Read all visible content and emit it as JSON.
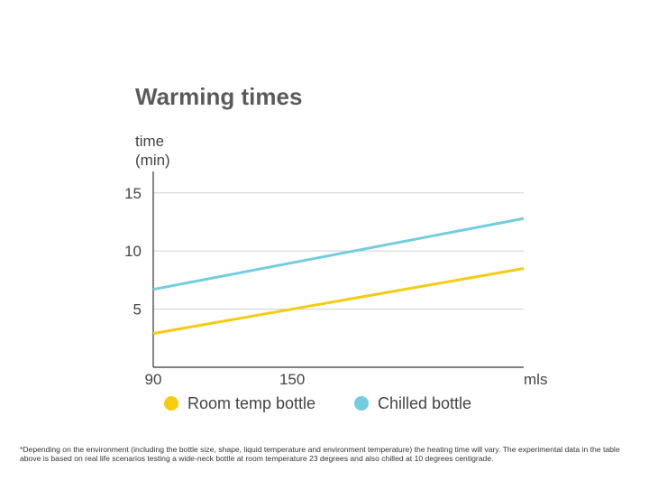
{
  "chart_data": {
    "type": "line",
    "title": "Warming times",
    "ylabel_line1": "time",
    "ylabel_line2": "(min)",
    "xunit": "mls",
    "xlim": [
      90,
      250
    ],
    "ylim": [
      0,
      17
    ],
    "yticks": [
      5,
      10,
      15
    ],
    "xticks": [
      90,
      150
    ],
    "grid": true,
    "legend_position": "bottom",
    "series": [
      {
        "name": "Room temp bottle",
        "color": "#f5cc12",
        "x": [
          90,
          250
        ],
        "y": [
          2.9,
          8.5
        ]
      },
      {
        "name": "Chilled bottle",
        "color": "#72cde0",
        "x": [
          90,
          250
        ],
        "y": [
          6.7,
          12.8
        ]
      }
    ]
  },
  "footnote": "*Depending on the environment (including the bottle size, shape, liquid temperature and environment temperature) the heating time will vary.  The experimental data in the table above is based on real life scenarios testing a wide-neck bottle at room temperature 23 degrees and also chilled at 10 degrees centigrade."
}
